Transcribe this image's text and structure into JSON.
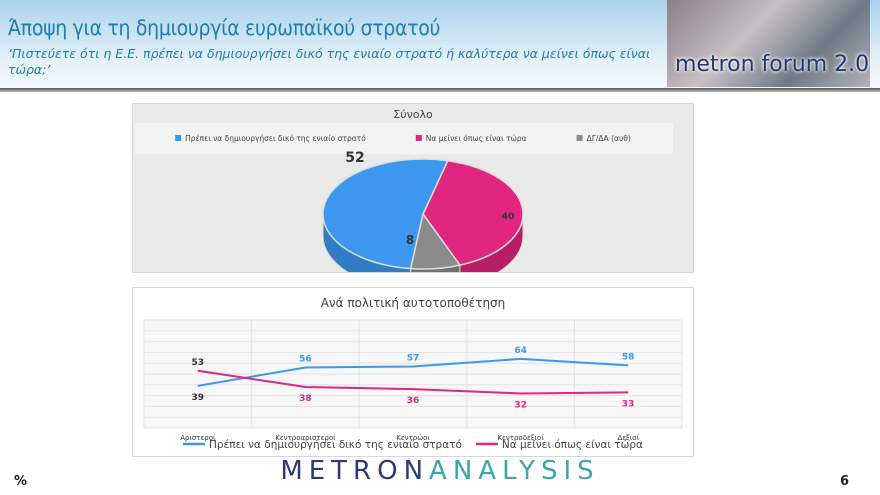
{
  "header": {
    "title": "Άποψη για τη δημιουργία ευρωπαϊκού στρατού",
    "subtitle": "‘Πιστεύετε ότι η Ε.Ε. πρέπει να δημιουργήσει δικό της ενιαίο στρατό ή καλύτερα να μείνει όπως είναι τώρα;’",
    "logo_text": "metron forum 2.0"
  },
  "footer": {
    "brand_a": "METRON",
    "brand_b": "ANALYSIS",
    "unit": "%",
    "page": "6"
  },
  "chart_data": [
    {
      "type": "pie",
      "title": "Σύνολο",
      "legend_position": "top",
      "categories": [
        "Πρέπει να δημιουργήσει δικό της ενιαίο στρατό",
        "Να μείνει όπως είναι τώρα",
        "ΔΓ/ΔΑ (αυθ)"
      ],
      "values": [
        52,
        40,
        8
      ],
      "colors": [
        "#3d97ee",
        "#e0267e",
        "#8a8a8a"
      ]
    },
    {
      "type": "line",
      "title": "Ανά πολιτική αυτοτοποθέτηση",
      "categories": [
        "Αριστεροί",
        "Κεντροαριστεροί",
        "Κεντρώοι",
        "Κεντροδεξιοί",
        "Δεξιοί"
      ],
      "ylim": [
        0,
        100
      ],
      "grid": true,
      "legend_position": "bottom",
      "series": [
        {
          "name": "Πρέπει να δημιουργήσει δικό της ενιαίο στρατό",
          "values": [
            39,
            56,
            57,
            64,
            58
          ],
          "color": "#3d97ee"
        },
        {
          "name": "Να μείνει όπως είναι τώρα",
          "values": [
            53,
            38,
            36,
            32,
            33
          ],
          "color": "#e0267e"
        }
      ]
    }
  ]
}
